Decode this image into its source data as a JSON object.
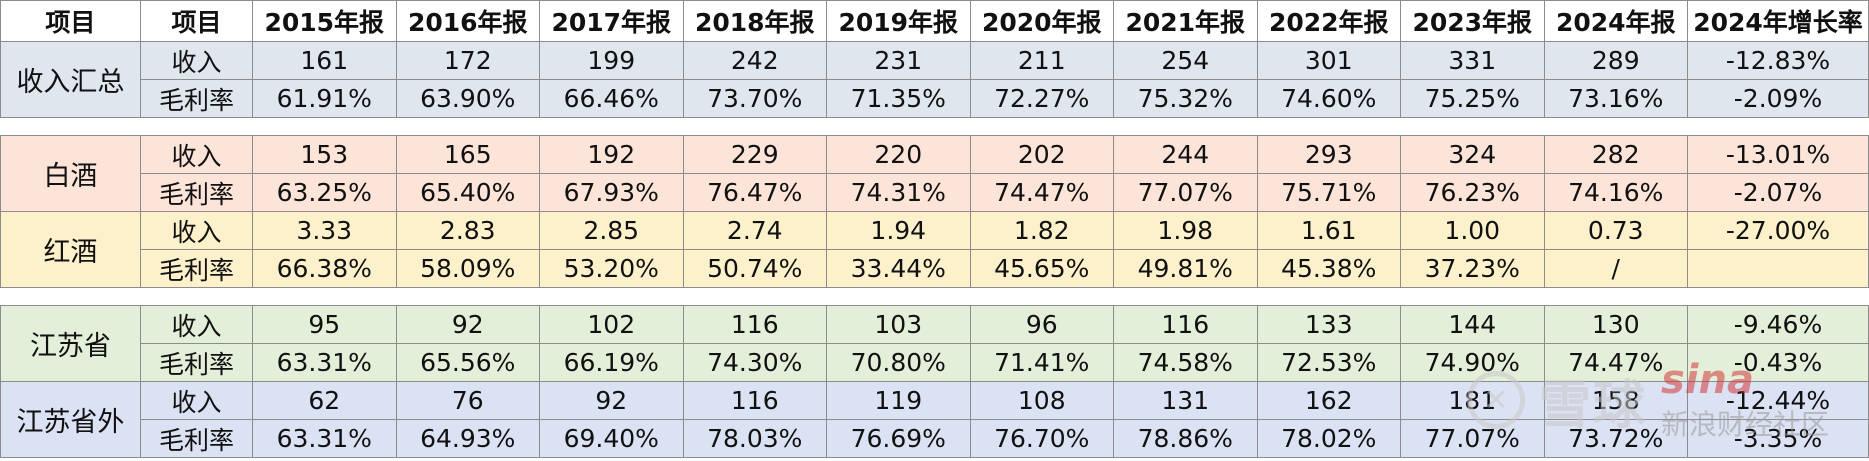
{
  "header": {
    "col0": "项目",
    "col1": "项目",
    "years": [
      "2015年报",
      "2016年报",
      "2017年报",
      "2018年报",
      "2019年报",
      "2020年报",
      "2021年报",
      "2022年报",
      "2023年报",
      "2024年报"
    ],
    "growth": "2024年增长率"
  },
  "groups": [
    {
      "name": "收入汇总",
      "rows": [
        {
          "label": "收入",
          "values": [
            "161",
            "172",
            "199",
            "242",
            "231",
            "211",
            "254",
            "301",
            "331",
            "289"
          ],
          "growth": "-12.83%"
        },
        {
          "label": "毛利率",
          "values": [
            "61.91%",
            "63.90%",
            "66.46%",
            "73.70%",
            "71.35%",
            "72.27%",
            "75.32%",
            "74.60%",
            "75.25%",
            "73.16%"
          ],
          "growth": "-2.09%"
        }
      ]
    },
    {
      "name": "白酒",
      "rows": [
        {
          "label": "收入",
          "values": [
            "153",
            "165",
            "192",
            "229",
            "220",
            "202",
            "244",
            "293",
            "324",
            "282"
          ],
          "growth": "-13.01%"
        },
        {
          "label": "毛利率",
          "values": [
            "63.25%",
            "65.40%",
            "67.93%",
            "76.47%",
            "74.31%",
            "74.47%",
            "77.07%",
            "75.71%",
            "76.23%",
            "74.16%"
          ],
          "growth": "-2.07%"
        }
      ]
    },
    {
      "name": "红酒",
      "rows": [
        {
          "label": "收入",
          "values": [
            "3.33",
            "2.83",
            "2.85",
            "2.74",
            "1.94",
            "1.82",
            "1.98",
            "1.61",
            "1.00",
            "0.73"
          ],
          "growth": "-27.00%"
        },
        {
          "label": "毛利率",
          "values": [
            "66.38%",
            "58.09%",
            "53.20%",
            "50.74%",
            "33.44%",
            "45.65%",
            "49.81%",
            "45.38%",
            "37.23%",
            "/"
          ],
          "growth": ""
        }
      ]
    },
    {
      "name": "江苏省",
      "rows": [
        {
          "label": "收入",
          "values": [
            "95",
            "92",
            "102",
            "116",
            "103",
            "96",
            "116",
            "133",
            "144",
            "130"
          ],
          "growth": "-9.46%"
        },
        {
          "label": "毛利率",
          "values": [
            "63.31%",
            "65.56%",
            "66.19%",
            "74.30%",
            "70.80%",
            "71.41%",
            "74.58%",
            "72.53%",
            "74.90%",
            "74.47%"
          ],
          "growth": "-0.43%"
        }
      ]
    },
    {
      "name": "江苏省外",
      "rows": [
        {
          "label": "收入",
          "values": [
            "62",
            "76",
            "92",
            "116",
            "119",
            "108",
            "131",
            "162",
            "181",
            "158"
          ],
          "growth": "-12.44%"
        },
        {
          "label": "毛利率",
          "values": [
            "63.31%",
            "64.93%",
            "69.40%",
            "78.03%",
            "76.69%",
            "76.70%",
            "78.86%",
            "78.02%",
            "77.07%",
            "73.72%"
          ],
          "growth": "-3.35%"
        }
      ]
    }
  ],
  "watermark": {
    "logo_glyph": "✕",
    "text1": "雪球",
    "brand": "sina",
    "text2": "新浪财经社区",
    "brand_color": "#d23a3a"
  }
}
